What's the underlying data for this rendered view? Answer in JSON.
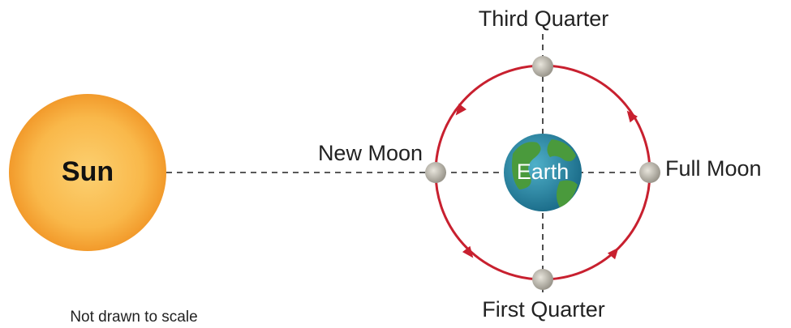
{
  "diagram": {
    "sun": {
      "label": "Sun"
    },
    "earth": {
      "label": "Earth"
    },
    "phases": [
      {
        "label": "New Moon"
      },
      {
        "label": "First Quarter"
      },
      {
        "label": "Full Moon"
      },
      {
        "label": "Third Quarter"
      }
    ],
    "note": "Not drawn to scale"
  }
}
